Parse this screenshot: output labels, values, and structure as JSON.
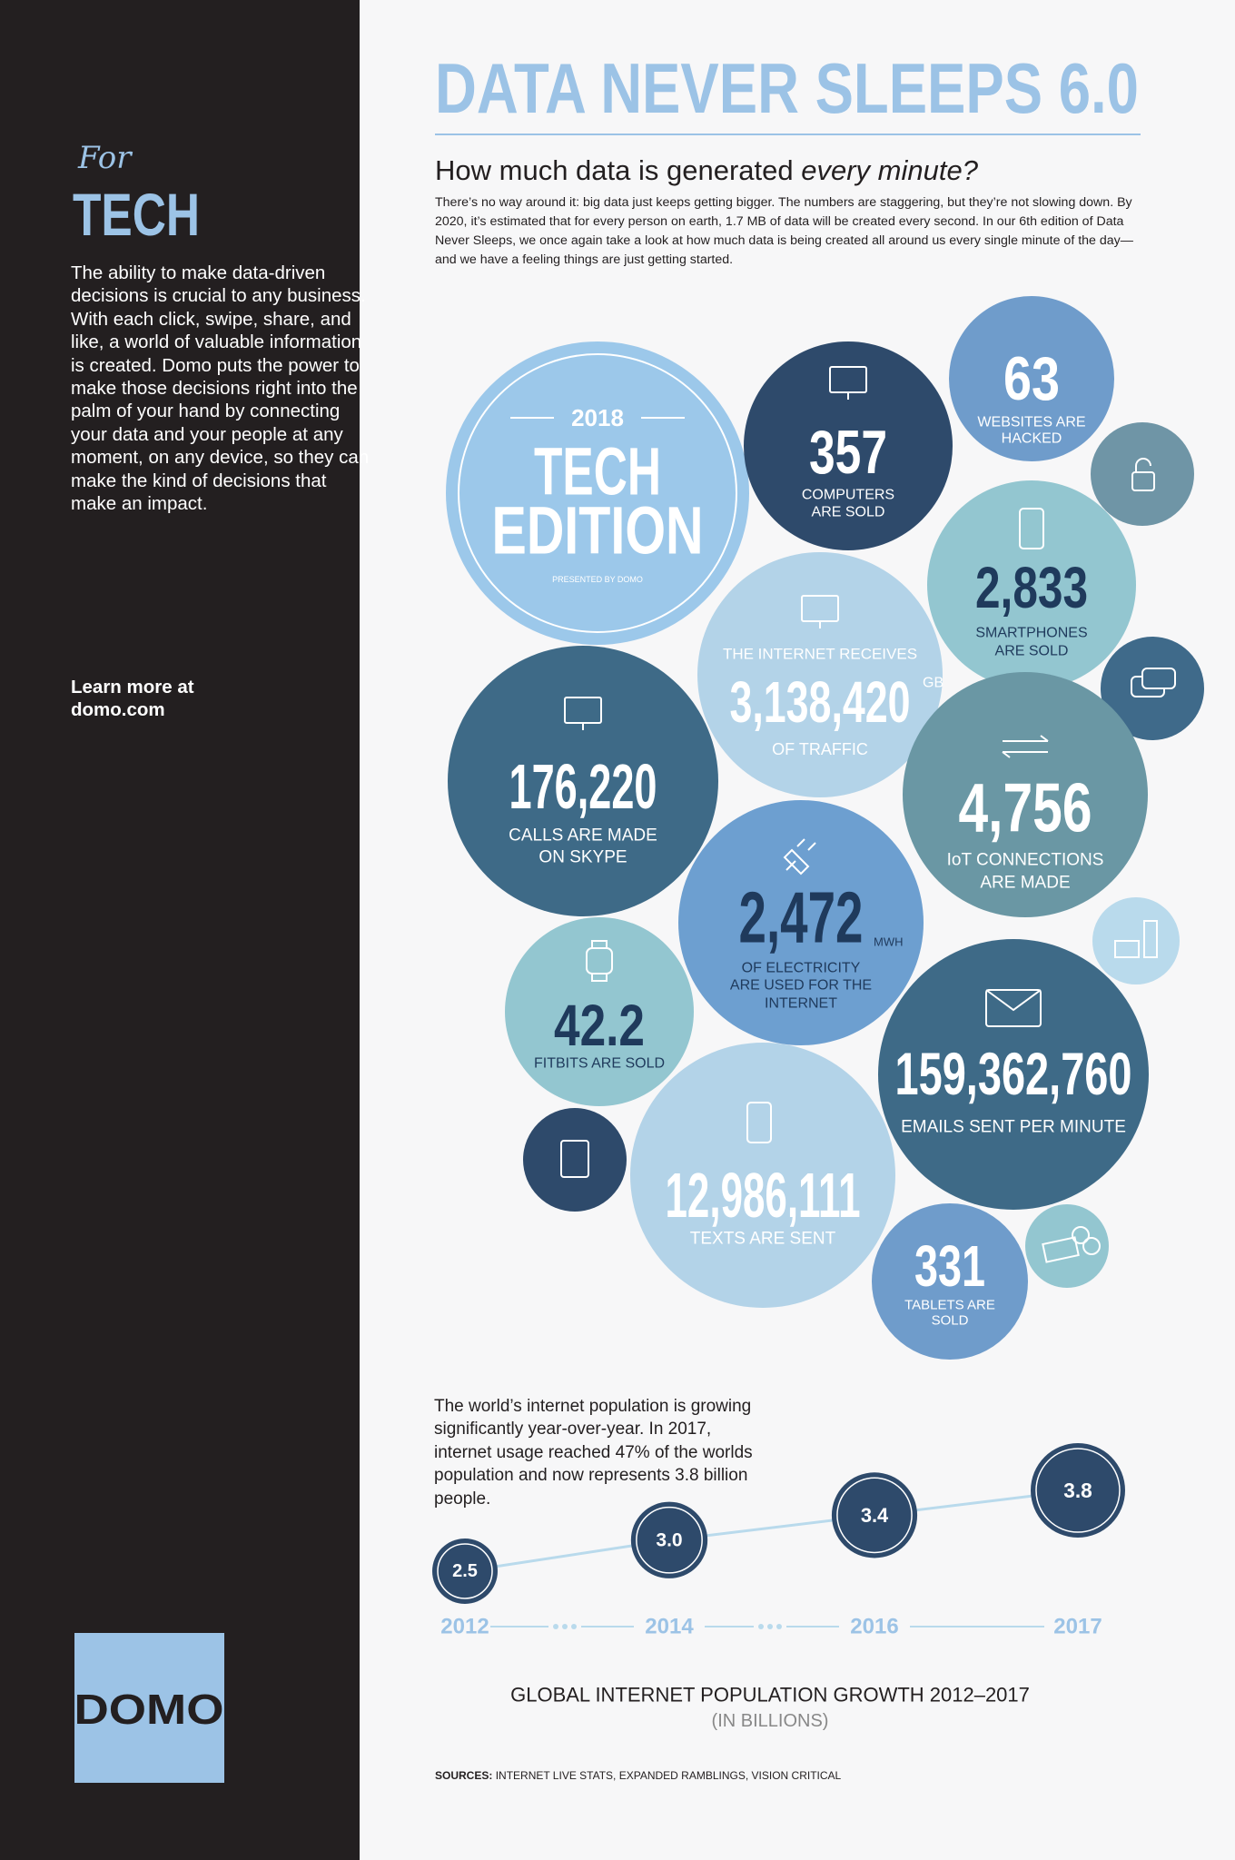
{
  "sidebar": {
    "for": "For",
    "title": "TECH",
    "body": "The ability to make data-driven decisions is crucial to any business. With each click, swipe, share, and like, a world of valuable information is created. Domo puts the power to make those decisions right into the palm of your hand by connecting your data and your people at any moment, on any device, so they can make the kind of decisions that make an impact.",
    "learn_more": "Learn more at domo.com",
    "logo": "DOMO"
  },
  "header": {
    "title": "DATA NEVER SLEEPS 6.0",
    "subtitle": "How much data is generated",
    "subtitle_emphasis": "every minute?",
    "intro": "There’s no way around it: big data just keeps getting bigger. The numbers are staggering, but they’re not slowing down. By 2020, it’s estimated that for every person on earth, 1.7 MB of data will be created every second. In our 6th edition of Data Never Sleeps, we once again take a look at how much data is being created all around us every single minute of the day—and we have a feeling things are just getting started."
  },
  "badge": {
    "year": "2018",
    "line1": "TECH",
    "line2": "EDITION",
    "presented": "PRESENTED BY DOMO"
  },
  "stats": [
    {
      "number": "357",
      "label": [
        "COMPUTERS",
        "ARE SOLD"
      ]
    },
    {
      "number": "63",
      "label": [
        "WEBSITES ARE",
        "HACKED"
      ]
    },
    {
      "number": "2,833",
      "label": [
        "SMARTPHONES",
        "ARE SOLD"
      ]
    },
    {
      "pre": "THE INTERNET RECEIVES",
      "number": "3,138,420",
      "unit": "GB",
      "label": [
        "OF TRAFFIC"
      ]
    },
    {
      "number": "176,220",
      "label": [
        "CALLS ARE MADE",
        "ON SKYPE"
      ]
    },
    {
      "number": "4,756",
      "label": [
        "IoT CONNECTIONS",
        "ARE MADE"
      ]
    },
    {
      "number": "2,472",
      "unit": "MWH",
      "label": [
        "OF ELECTRICITY",
        "ARE USED FOR THE",
        "INTERNET"
      ]
    },
    {
      "number": "42.2",
      "label": [
        "FITBITS ARE SOLD"
      ]
    },
    {
      "number": "159,362,760",
      "label": [
        "EMAILS SENT PER MINUTE"
      ]
    },
    {
      "number": "12,986,111",
      "label": [
        "TEXTS ARE SENT"
      ]
    },
    {
      "number": "331",
      "label": [
        "TABLETS ARE",
        "SOLD"
      ]
    }
  ],
  "population_text": "The world’s internet population is growing significantly year-over-year. In 2017, internet usage reached 47% of the worlds population and now represents 3.8 billion people.",
  "chart_data": {
    "type": "line",
    "title": "GLOBAL INTERNET POPULATION GROWTH 2012–2017",
    "subtitle": "(IN BILLIONS)",
    "categories": [
      "2012",
      "2014",
      "2016",
      "2017"
    ],
    "values": [
      2.5,
      3,
      3.4,
      3.8
    ],
    "value_labels": [
      "2.5",
      "3.0",
      "3.4",
      "3.8"
    ],
    "color": "#2e4a6b"
  },
  "sources": {
    "label": "SOURCES:",
    "text": "INTERNET LIVE STATS, EXPANDED RAMBLINGS, VISION CRITICAL"
  }
}
